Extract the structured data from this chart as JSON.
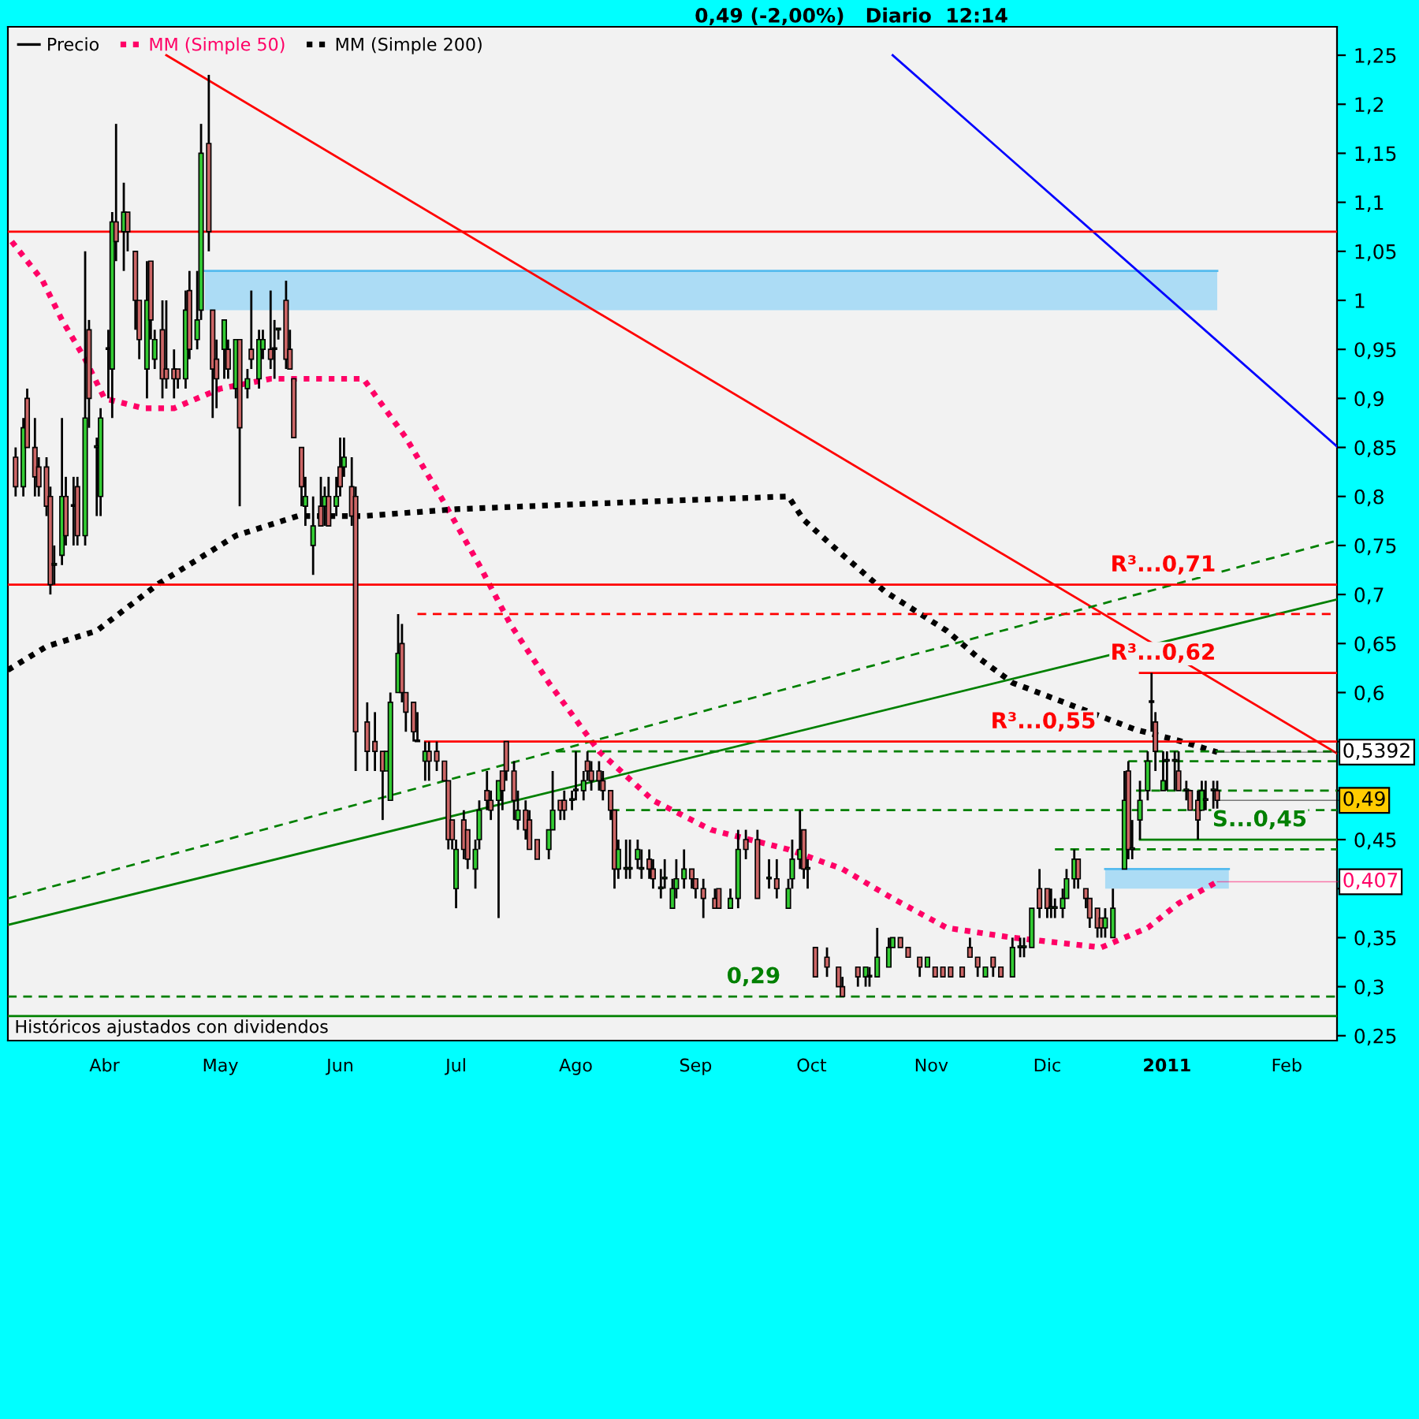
{
  "chart_data": {
    "type": "candlestick",
    "title": "0,49 (-2,00%)   Diario  12:14",
    "legend": "top left",
    "xlim": [
      "2010-03-07",
      "2011-02-14"
    ],
    "ylim": [
      0.245,
      1.279
    ],
    "xticks": [
      {
        "value": "2010-04-01",
        "label": "Abr"
      },
      {
        "value": "2010-05-01",
        "label": "May"
      },
      {
        "value": "2010-06-01",
        "label": "Jun"
      },
      {
        "value": "2010-07-01",
        "label": "Jul"
      },
      {
        "value": "2010-08-01",
        "label": "Ago"
      },
      {
        "value": "2010-09-01",
        "label": "Sep"
      },
      {
        "value": "2010-10-01",
        "label": "Oct"
      },
      {
        "value": "2010-11-01",
        "label": "Nov"
      },
      {
        "value": "2010-12-01",
        "label": "Dic"
      },
      {
        "value": "2011-01-01",
        "label": "2011"
      },
      {
        "value": "2011-02-01",
        "label": "Feb"
      }
    ],
    "yticks": [
      {
        "value": 0.25,
        "label": "0,25"
      },
      {
        "value": 0.3,
        "label": "0,3"
      },
      {
        "value": 0.35,
        "label": "0,35"
      },
      {
        "value": 0.4,
        "label": null
      },
      {
        "value": 0.45,
        "label": "0,45"
      },
      {
        "value": 0.5,
        "label": null
      },
      {
        "value": 0.55,
        "label": null
      },
      {
        "value": 0.6,
        "label": "0,6"
      },
      {
        "value": 0.65,
        "label": "0,65"
      },
      {
        "value": 0.7,
        "label": "0,7"
      },
      {
        "value": 0.75,
        "label": "0,75"
      },
      {
        "value": 0.8,
        "label": "0,8"
      },
      {
        "value": 0.85,
        "label": "0,85"
      },
      {
        "value": 0.9,
        "label": "0,9"
      },
      {
        "value": 0.95,
        "label": "0,95"
      },
      {
        "value": 1,
        "label": "1"
      },
      {
        "value": 1.05,
        "label": "1,05"
      },
      {
        "value": 1.1,
        "label": "1,1"
      },
      {
        "value": 1.15,
        "label": "1,15"
      },
      {
        "value": 1.2,
        "label": "1,2"
      },
      {
        "value": 1.25,
        "label": "1,25"
      }
    ],
    "series": [
      {
        "name": "Precio",
        "color": "#000000",
        "x": [
          "2010-03-09",
          "2010-03-11",
          "2010-03-12",
          "2010-03-14",
          "2010-03-15",
          "2010-03-17",
          "2010-03-18",
          "2010-03-19",
          "2010-03-21",
          "2010-03-22",
          "2010-03-24",
          "2010-03-25",
          "2010-03-27",
          "2010-03-28",
          "2010-03-30",
          "2010-03-31",
          "2010-04-02",
          "2010-04-03",
          "2010-04-04",
          "2010-04-06",
          "2010-04-07",
          "2010-04-09",
          "2010-04-10",
          "2010-04-12",
          "2010-04-13",
          "2010-04-14",
          "2010-04-16",
          "2010-04-17",
          "2010-04-19",
          "2010-04-20",
          "2010-04-22",
          "2010-04-23",
          "2010-04-25",
          "2010-04-26",
          "2010-04-28",
          "2010-04-29",
          "2010-04-30",
          "2010-05-02",
          "2010-05-03",
          "2010-05-05",
          "2010-05-06",
          "2010-05-08",
          "2010-05-09",
          "2010-05-11",
          "2010-05-12",
          "2010-05-14",
          "2010-05-15",
          "2010-05-16",
          "2010-05-18",
          "2010-05-19",
          "2010-05-20",
          "2010-05-22",
          "2010-05-23",
          "2010-05-25",
          "2010-05-27",
          "2010-05-28",
          "2010-05-29",
          "2010-05-31",
          "2010-06-01",
          "2010-06-02",
          "2010-06-04",
          "2010-06-05",
          "2010-06-08",
          "2010-06-10",
          "2010-06-12",
          "2010-06-13",
          "2010-06-14",
          "2010-06-16",
          "2010-06-17",
          "2010-06-18",
          "2010-06-20",
          "2010-06-21",
          "2010-06-23",
          "2010-06-24",
          "2010-06-26",
          "2010-06-28",
          "2010-06-29",
          "2010-06-30",
          "2010-07-01",
          "2010-07-03",
          "2010-07-04",
          "2010-07-06",
          "2010-07-07",
          "2010-07-09",
          "2010-07-10",
          "2010-07-12",
          "2010-07-13",
          "2010-07-14",
          "2010-07-16",
          "2010-07-17",
          "2010-07-19",
          "2010-07-20",
          "2010-07-22",
          "2010-07-25",
          "2010-07-26",
          "2010-07-28",
          "2010-07-29",
          "2010-07-31",
          "2010-08-01",
          "2010-08-03",
          "2010-08-04",
          "2010-08-05",
          "2010-08-07",
          "2010-08-08",
          "2010-08-10",
          "2010-08-11",
          "2010-08-12",
          "2010-08-14",
          "2010-08-15",
          "2010-08-17",
          "2010-08-18",
          "2010-08-20",
          "2010-08-21",
          "2010-08-23",
          "2010-08-24",
          "2010-08-26",
          "2010-08-27",
          "2010-08-29",
          "2010-08-31",
          "2010-09-01",
          "2010-09-03",
          "2010-09-06",
          "2010-09-07",
          "2010-09-10",
          "2010-09-12",
          "2010-09-14",
          "2010-09-17",
          "2010-09-20",
          "2010-09-22",
          "2010-09-25",
          "2010-09-26",
          "2010-09-28",
          "2010-09-29",
          "2010-09-30",
          "2010-10-02",
          "2010-10-05",
          "2010-10-08",
          "2010-10-09",
          "2010-10-13",
          "2010-10-15",
          "2010-10-16",
          "2010-10-18",
          "2010-10-21",
          "2010-10-22",
          "2010-10-24",
          "2010-10-26",
          "2010-10-29",
          "2010-10-31",
          "2010-11-02",
          "2010-11-04",
          "2010-11-06",
          "2010-11-09",
          "2010-11-11",
          "2010-11-13",
          "2010-11-15",
          "2010-11-17",
          "2010-11-19",
          "2010-11-22",
          "2010-11-24",
          "2010-11-25",
          "2010-11-27",
          "2010-11-29",
          "2010-12-01",
          "2010-12-02",
          "2010-12-03",
          "2010-12-05",
          "2010-12-06",
          "2010-12-08",
          "2010-12-09",
          "2010-12-11",
          "2010-12-12",
          "2010-12-14",
          "2010-12-15",
          "2010-12-16",
          "2010-12-18",
          "2010-12-21",
          "2010-12-22",
          "2010-12-23",
          "2010-12-25",
          "2010-12-27",
          "2010-12-28",
          "2010-12-29",
          "2010-12-31",
          "2011-01-01",
          "2011-01-03",
          "2011-01-04",
          "2011-01-06",
          "2011-01-07",
          "2011-01-09",
          "2011-01-10",
          "2011-01-11",
          "2011-01-13",
          "2011-01-14"
        ],
        "ohlc": [
          [
            0.84,
            0.85,
            0.8,
            0.81
          ],
          [
            0.81,
            0.88,
            0.8,
            0.87
          ],
          [
            0.9,
            0.91,
            0.85,
            0.85
          ],
          [
            0.85,
            0.88,
            0.8,
            0.82
          ],
          [
            0.83,
            0.84,
            0.8,
            0.81
          ],
          [
            0.83,
            0.84,
            0.78,
            0.79
          ],
          [
            0.8,
            0.81,
            0.7,
            0.71
          ],
          [
            0.73,
            0.75,
            0.71,
            0.73
          ],
          [
            0.74,
            0.88,
            0.73,
            0.8
          ],
          [
            0.8,
            0.82,
            0.75,
            0.76
          ],
          [
            0.79,
            0.82,
            0.75,
            0.79
          ],
          [
            0.81,
            0.82,
            0.75,
            0.76
          ],
          [
            0.76,
            1.05,
            0.75,
            0.88
          ],
          [
            0.97,
            0.98,
            0.87,
            0.9
          ],
          [
            0.85,
            0.86,
            0.78,
            0.85
          ],
          [
            0.8,
            0.89,
            0.78,
            0.88
          ],
          [
            0.95,
            0.97,
            0.9,
            0.95
          ],
          [
            0.93,
            1.09,
            0.88,
            1.08
          ],
          [
            1.08,
            1.18,
            1.04,
            1.06
          ],
          [
            1.07,
            1.12,
            1.03,
            1.09
          ],
          [
            1.09,
            1.09,
            1.05,
            1.07
          ],
          [
            1.05,
            1.05,
            0.97,
            1.0
          ],
          [
            1.0,
            1.0,
            0.94,
            0.96
          ],
          [
            0.93,
            1.04,
            0.9,
            1.0
          ],
          [
            1.04,
            1.04,
            0.96,
            0.98
          ],
          [
            0.94,
            0.97,
            0.93,
            0.96
          ],
          [
            0.97,
            1.0,
            0.9,
            0.92
          ],
          [
            0.93,
            1.0,
            0.91,
            0.92
          ],
          [
            0.93,
            0.95,
            0.9,
            0.92
          ],
          [
            0.93,
            0.93,
            0.91,
            0.92
          ],
          [
            0.92,
            1.01,
            0.91,
            0.99
          ],
          [
            1.01,
            1.03,
            0.94,
            0.95
          ],
          [
            0.96,
            1.03,
            0.95,
            0.98
          ],
          [
            0.99,
            1.18,
            0.98,
            1.15
          ],
          [
            1.16,
            1.23,
            1.05,
            1.07
          ],
          [
            0.99,
            0.99,
            0.88,
            0.93
          ],
          [
            0.94,
            0.96,
            0.89,
            0.92
          ],
          [
            0.95,
            0.98,
            0.92,
            0.98
          ],
          [
            0.95,
            0.96,
            0.92,
            0.93
          ],
          [
            0.91,
            0.96,
            0.9,
            0.96
          ],
          [
            0.96,
            0.96,
            0.79,
            0.87
          ],
          [
            0.91,
            0.93,
            0.9,
            0.92
          ],
          [
            0.95,
            1.01,
            0.93,
            0.94
          ],
          [
            0.92,
            0.97,
            0.91,
            0.96
          ],
          [
            0.95,
            0.97,
            0.94,
            0.96
          ],
          [
            0.95,
            1.01,
            0.93,
            0.94
          ],
          [
            0.95,
            0.98,
            0.92,
            0.95
          ],
          [
            0.97,
            0.97,
            0.96,
            0.97
          ],
          [
            1.0,
            1.02,
            0.93,
            0.94
          ],
          [
            0.95,
            0.97,
            0.93,
            0.93
          ],
          [
            0.92,
            0.92,
            0.86,
            0.86
          ],
          [
            0.85,
            0.85,
            0.79,
            0.81
          ],
          [
            0.79,
            0.82,
            0.77,
            0.8
          ],
          [
            0.75,
            0.8,
            0.72,
            0.77
          ],
          [
            0.79,
            0.82,
            0.77,
            0.77
          ],
          [
            0.79,
            0.81,
            0.77,
            0.8
          ],
          [
            0.8,
            0.82,
            0.77,
            0.77
          ],
          [
            0.79,
            0.82,
            0.78,
            0.8
          ],
          [
            0.83,
            0.86,
            0.8,
            0.81
          ],
          [
            0.83,
            0.86,
            0.82,
            0.84
          ],
          [
            0.81,
            0.84,
            0.77,
            0.78
          ],
          [
            0.8,
            0.81,
            0.52,
            0.56
          ],
          [
            0.57,
            0.59,
            0.52,
            0.54
          ],
          [
            0.55,
            0.58,
            0.52,
            0.54
          ],
          [
            0.54,
            0.54,
            0.47,
            0.52
          ],
          [
            0.52,
            0.54,
            0.52,
            0.54
          ],
          [
            0.49,
            0.6,
            0.49,
            0.59
          ],
          [
            0.6,
            0.68,
            0.6,
            0.64
          ],
          [
            0.65,
            0.67,
            0.59,
            0.6
          ],
          [
            0.6,
            0.6,
            0.56,
            0.58
          ],
          [
            0.59,
            0.59,
            0.55,
            0.56
          ],
          [
            0.55,
            0.58,
            0.55,
            0.55
          ],
          [
            0.53,
            0.55,
            0.51,
            0.54
          ],
          [
            0.54,
            0.55,
            0.51,
            0.53
          ],
          [
            0.54,
            0.55,
            0.52,
            0.53
          ],
          [
            0.53,
            0.53,
            0.51,
            0.51
          ],
          [
            0.51,
            0.51,
            0.44,
            0.45
          ],
          [
            0.47,
            0.47,
            0.44,
            0.45
          ],
          [
            0.4,
            0.45,
            0.38,
            0.44
          ],
          [
            0.47,
            0.48,
            0.43,
            0.44
          ],
          [
            0.46,
            0.46,
            0.42,
            0.43
          ],
          [
            0.42,
            0.45,
            0.4,
            0.44
          ],
          [
            0.45,
            0.49,
            0.44,
            0.48
          ],
          [
            0.5,
            0.52,
            0.48,
            0.49
          ],
          [
            0.49,
            0.5,
            0.47,
            0.48
          ],
          [
            0.49,
            0.51,
            0.37,
            0.51
          ],
          [
            0.52,
            0.52,
            0.48,
            0.5
          ],
          [
            0.55,
            0.55,
            0.51,
            0.52
          ],
          [
            0.52,
            0.53,
            0.47,
            0.49
          ],
          [
            0.47,
            0.5,
            0.46,
            0.48
          ],
          [
            0.48,
            0.49,
            0.45,
            0.46
          ],
          [
            0.47,
            0.48,
            0.44,
            0.44
          ],
          [
            0.45,
            0.45,
            0.43,
            0.43
          ],
          [
            0.44,
            0.46,
            0.43,
            0.46
          ],
          [
            0.46,
            0.52,
            0.46,
            0.48
          ],
          [
            0.49,
            0.49,
            0.47,
            0.48
          ],
          [
            0.49,
            0.5,
            0.47,
            0.48
          ],
          [
            0.49,
            0.5,
            0.48,
            0.49
          ],
          [
            0.5,
            0.54,
            0.49,
            0.5
          ],
          [
            0.5,
            0.52,
            0.49,
            0.51
          ],
          [
            0.53,
            0.54,
            0.51,
            0.52
          ],
          [
            0.52,
            0.53,
            0.5,
            0.51
          ],
          [
            0.52,
            0.53,
            0.5,
            0.51
          ],
          [
            0.51,
            0.52,
            0.49,
            0.5
          ],
          [
            0.5,
            0.5,
            0.47,
            0.48
          ],
          [
            0.48,
            0.48,
            0.4,
            0.42
          ],
          [
            0.42,
            0.45,
            0.41,
            0.44
          ],
          [
            0.42,
            0.45,
            0.41,
            0.42
          ],
          [
            0.42,
            0.45,
            0.41,
            0.42
          ],
          [
            0.43,
            0.45,
            0.42,
            0.44
          ],
          [
            0.42,
            0.44,
            0.41,
            0.42
          ],
          [
            0.43,
            0.44,
            0.41,
            0.42
          ],
          [
            0.42,
            0.43,
            0.4,
            0.41
          ],
          [
            0.4,
            0.42,
            0.39,
            0.4
          ],
          [
            0.41,
            0.43,
            0.4,
            0.41
          ],
          [
            0.38,
            0.41,
            0.38,
            0.4
          ],
          [
            0.4,
            0.43,
            0.39,
            0.41
          ],
          [
            0.41,
            0.44,
            0.4,
            0.42
          ],
          [
            0.42,
            0.42,
            0.4,
            0.41
          ],
          [
            0.41,
            0.41,
            0.39,
            0.4
          ],
          [
            0.4,
            0.41,
            0.37,
            0.39
          ],
          [
            0.39,
            0.4,
            0.38,
            0.38
          ],
          [
            0.4,
            0.4,
            0.38,
            0.38
          ],
          [
            0.38,
            0.4,
            0.38,
            0.39
          ],
          [
            0.39,
            0.46,
            0.38,
            0.44
          ],
          [
            0.45,
            0.46,
            0.43,
            0.44
          ],
          [
            0.45,
            0.46,
            0.39,
            0.39
          ],
          [
            0.41,
            0.43,
            0.4,
            0.41
          ],
          [
            0.41,
            0.43,
            0.39,
            0.4
          ],
          [
            0.38,
            0.41,
            0.38,
            0.4
          ],
          [
            0.41,
            0.45,
            0.4,
            0.43
          ],
          [
            0.43,
            0.48,
            0.42,
            0.44
          ],
          [
            0.46,
            0.46,
            0.41,
            0.42
          ],
          [
            0.42,
            0.43,
            0.4,
            0.42
          ],
          [
            0.34,
            0.34,
            0.31,
            0.31
          ],
          [
            0.33,
            0.34,
            0.31,
            0.32
          ],
          [
            0.32,
            0.32,
            0.3,
            0.3
          ],
          [
            0.3,
            0.31,
            0.29,
            0.29
          ],
          [
            0.32,
            0.32,
            0.3,
            0.31
          ],
          [
            0.31,
            0.32,
            0.3,
            0.32
          ],
          [
            0.31,
            0.32,
            0.3,
            0.31
          ],
          [
            0.31,
            0.36,
            0.31,
            0.33
          ],
          [
            0.32,
            0.35,
            0.32,
            0.34
          ],
          [
            0.34,
            0.35,
            0.34,
            0.35
          ],
          [
            0.35,
            0.35,
            0.34,
            0.34
          ],
          [
            0.34,
            0.34,
            0.33,
            0.33
          ],
          [
            0.33,
            0.33,
            0.31,
            0.32
          ],
          [
            0.32,
            0.33,
            0.32,
            0.33
          ],
          [
            0.32,
            0.32,
            0.31,
            0.31
          ],
          [
            0.32,
            0.32,
            0.31,
            0.31
          ],
          [
            0.32,
            0.32,
            0.31,
            0.31
          ],
          [
            0.32,
            0.32,
            0.31,
            0.31
          ],
          [
            0.34,
            0.35,
            0.33,
            0.33
          ],
          [
            0.33,
            0.33,
            0.31,
            0.32
          ],
          [
            0.31,
            0.32,
            0.31,
            0.32
          ],
          [
            0.33,
            0.33,
            0.31,
            0.32
          ],
          [
            0.32,
            0.32,
            0.31,
            0.31
          ],
          [
            0.31,
            0.35,
            0.31,
            0.34
          ],
          [
            0.34,
            0.35,
            0.33,
            0.34
          ],
          [
            0.34,
            0.35,
            0.33,
            0.34
          ],
          [
            0.34,
            0.38,
            0.34,
            0.38
          ],
          [
            0.4,
            0.42,
            0.37,
            0.38
          ],
          [
            0.4,
            0.4,
            0.37,
            0.38
          ],
          [
            0.38,
            0.4,
            0.37,
            0.38
          ],
          [
            0.38,
            0.39,
            0.37,
            0.38
          ],
          [
            0.38,
            0.4,
            0.37,
            0.39
          ],
          [
            0.39,
            0.42,
            0.39,
            0.41
          ],
          [
            0.41,
            0.44,
            0.4,
            0.43
          ],
          [
            0.43,
            0.43,
            0.4,
            0.41
          ],
          [
            0.4,
            0.4,
            0.38,
            0.39
          ],
          [
            0.39,
            0.39,
            0.36,
            0.37
          ],
          [
            0.38,
            0.38,
            0.35,
            0.36
          ],
          [
            0.37,
            0.37,
            0.35,
            0.36
          ],
          [
            0.36,
            0.38,
            0.35,
            0.37
          ],
          [
            0.35,
            0.4,
            0.35,
            0.38
          ],
          [
            0.42,
            0.52,
            0.42,
            0.49
          ],
          [
            0.52,
            0.53,
            0.43,
            0.44
          ],
          [
            0.44,
            0.47,
            0.43,
            0.44
          ],
          [
            0.47,
            0.51,
            0.45,
            0.49
          ],
          [
            0.5,
            0.54,
            0.49,
            0.53
          ],
          [
            0.59,
            0.62,
            0.56,
            0.59
          ],
          [
            0.57,
            0.58,
            0.52,
            0.54
          ],
          [
            0.5,
            0.54,
            0.5,
            0.51
          ],
          [
            0.53,
            0.54,
            0.5,
            0.53
          ],
          [
            0.53,
            0.54,
            0.5,
            0.53
          ],
          [
            0.52,
            0.54,
            0.5,
            0.5
          ],
          [
            0.5,
            0.51,
            0.49,
            0.5
          ],
          [
            0.5,
            0.5,
            0.48,
            0.48
          ],
          [
            0.49,
            0.5,
            0.45,
            0.47
          ],
          [
            0.48,
            0.51,
            0.48,
            0.5
          ],
          [
            0.49,
            0.51,
            0.48,
            0.49
          ],
          [
            0.5,
            0.51,
            0.48,
            0.5
          ],
          [
            0.5,
            0.51,
            0.48,
            0.49
          ]
        ]
      },
      {
        "type": "line",
        "name": "MM (Simple 50)",
        "color": "#ff0066",
        "line_style": "dotted",
        "x": [
          "2010-03-08",
          "2010-03-16",
          "2010-03-21",
          "2010-03-27",
          "2010-04-01",
          "2010-04-11",
          "2010-04-19",
          "2010-05-01",
          "2010-05-14",
          "2010-05-26",
          "2010-06-07",
          "2010-06-18",
          "2010-06-27",
          "2010-07-07",
          "2010-07-15",
          "2010-07-25",
          "2010-08-07",
          "2010-08-21",
          "2010-09-05",
          "2010-09-25",
          "2010-10-09",
          "2010-10-22",
          "2010-11-05",
          "2010-11-22",
          "2010-12-15",
          "2010-12-27",
          "2011-01-04",
          "2011-01-14"
        ],
        "values": [
          1.06,
          1.02,
          0.98,
          0.94,
          0.9,
          0.89,
          0.89,
          0.91,
          0.92,
          0.92,
          0.92,
          0.86,
          0.8,
          0.73,
          0.67,
          0.61,
          0.54,
          0.49,
          0.46,
          0.44,
          0.42,
          0.39,
          0.36,
          0.35,
          0.34,
          0.36,
          0.385,
          0.407
        ]
      },
      {
        "type": "line",
        "name": "MM (Simple 200)",
        "color": "#000000",
        "line_style": "dotted",
        "x": [
          "2010-03-07",
          "2010-03-17",
          "2010-03-30",
          "2010-04-15",
          "2010-05-05",
          "2010-05-21",
          "2010-06-07",
          "2010-07-01",
          "2010-08-01",
          "2010-08-21",
          "2010-09-25",
          "2010-09-29",
          "2010-10-08",
          "2010-10-20",
          "2010-11-05",
          "2010-11-13",
          "2010-11-22",
          "2010-12-10",
          "2010-12-24",
          "2011-01-04",
          "2011-01-14"
        ],
        "values": [
          0.623,
          0.647,
          0.663,
          0.711,
          0.76,
          0.78,
          0.78,
          0.787,
          0.792,
          0.795,
          0.8,
          0.776,
          0.744,
          0.703,
          0.663,
          0.636,
          0.61,
          0.583,
          0.562,
          0.551,
          0.5392
        ]
      },
      {
        "type": "line",
        "color": "#ff0000",
        "x": [
          "2010-04-17",
          "2011-02-14"
        ],
        "values": [
          1.25,
          0.538
        ]
      },
      {
        "type": "line",
        "color": "#0000ff",
        "x": [
          "2010-10-22",
          "2011-02-14"
        ],
        "values": [
          1.25,
          0.851
        ]
      },
      {
        "type": "line",
        "color": "#008000",
        "x": [
          "2010-03-07",
          "2011-02-14"
        ],
        "values": [
          0.363,
          0.695
        ]
      },
      {
        "type": "line",
        "color": "#008000",
        "line_style": "dashed",
        "x": [
          "2010-03-07",
          "2011-02-14"
        ],
        "values": [
          0.39,
          0.755
        ]
      },
      {
        "type": "line",
        "color": "#ff0000",
        "line_style": "dashed",
        "x": [
          "2010-06-21",
          "2011-02-14"
        ],
        "values": [
          0.68,
          0.68
        ]
      },
      {
        "type": "line",
        "color": "#ff0000",
        "x": [
          "2010-06-23",
          "2011-02-14"
        ],
        "values": [
          0.55,
          0.55
        ]
      },
      {
        "type": "line",
        "color": "#ff0000",
        "x": [
          "2010-12-25",
          "2011-02-14"
        ],
        "values": [
          0.62,
          0.62
        ]
      },
      {
        "type": "line",
        "color": "#008000",
        "line_style": "dashed",
        "x": [
          "2010-07-27",
          "2011-02-14"
        ],
        "values": [
          0.54,
          0.54
        ]
      },
      {
        "type": "line",
        "color": "#008000",
        "line_style": "dashed",
        "x": [
          "2010-12-22",
          "2011-02-14"
        ],
        "values": [
          0.53,
          0.53
        ]
      },
      {
        "type": "line",
        "color": "#008000",
        "line_style": "dashed",
        "x": [
          "2010-12-24",
          "2011-02-14"
        ],
        "values": [
          0.5,
          0.5
        ]
      },
      {
        "type": "line",
        "color": "#008000",
        "line_style": "dashed",
        "x": [
          "2010-08-10",
          "2011-02-14"
        ],
        "values": [
          0.48,
          0.48
        ]
      },
      {
        "type": "line",
        "color": "#008000",
        "line_style": "dashed",
        "x": [
          "2010-12-03",
          "2011-02-14"
        ],
        "values": [
          0.44,
          0.44
        ]
      },
      {
        "type": "line",
        "color": "#008000",
        "x": [
          "2010-12-25",
          "2011-02-14"
        ],
        "values": [
          0.45,
          0.45
        ]
      },
      {
        "type": "line",
        "color": "#55bbee",
        "x": [
          "2010-04-27",
          "2011-01-14"
        ],
        "values": [
          1.03,
          1.03
        ],
        "lower": [
          0.99,
          0.99
        ],
        "upper": [
          1.03,
          1.03
        ]
      },
      {
        "type": "line",
        "color": "#55bbee",
        "x": [
          "2010-12-16",
          "2011-01-17"
        ],
        "values": [
          0.42,
          0.42
        ],
        "lower": [
          0.4,
          0.4
        ],
        "upper": [
          0.42,
          0.42
        ]
      }
    ],
    "ref_lines": [
      {
        "axis": "y",
        "value": 1.07,
        "color": "#ff0000",
        "line_style": "solid"
      },
      {
        "axis": "y",
        "value": 0.71,
        "color": "#ff0000",
        "line_style": "solid"
      },
      {
        "axis": "y",
        "value": 0.29,
        "color": "#008000",
        "line_style": "dashed"
      },
      {
        "axis": "y",
        "value": 0.27,
        "color": "#008000",
        "line_style": "solid"
      }
    ],
    "annotations": [
      {
        "text": "R³...0,71",
        "x": "2010-12-31",
        "y": 0.71
      },
      {
        "text": "R³...0,62",
        "x": "2010-12-31",
        "y": 0.62
      },
      {
        "text": "R³...0,55",
        "x": "2010-11-30",
        "y": 0.55
      },
      {
        "text": "S...0,45",
        "x": "2011-01-25",
        "y": 0.45
      },
      {
        "text": "0,29",
        "x": "2010-09-16",
        "y": 0.29
      },
      {
        "text": "0,5392",
        "x": "2011-01-14",
        "y": 0.5392
      },
      {
        "text": "0,49",
        "x": "2011-01-14",
        "y": 0.49
      },
      {
        "text": "0,407",
        "x": "2011-01-14",
        "y": 0.407
      },
      "Históricos ajustados con dividendos"
    ]
  }
}
